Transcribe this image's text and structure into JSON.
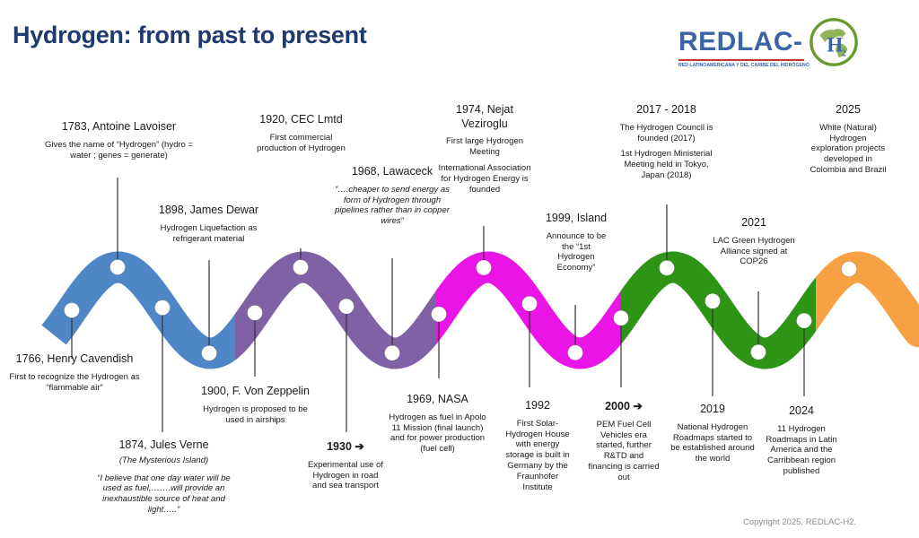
{
  "title": "Hydrogen: from past to present",
  "logo": {
    "word": "REDLAC-",
    "h2": "H",
    "h2_sub": "2",
    "subtitle": "RED LATINOAMERICANA Y DEL CARIBE DEL HIDRÓGENO"
  },
  "colors": {
    "title": "#1f3a6e",
    "blue": "#4f86c6",
    "purple": "#7f62a6",
    "magenta": "#ea14e6",
    "green": "#2e9416",
    "orange": "#f7a044"
  },
  "events": [
    {
      "id": "1766",
      "heading": "1766, Henry Cavendish",
      "lines": [
        "First to recognize the Hydrogen as “flammable air”"
      ]
    },
    {
      "id": "1783",
      "heading": "1783, Antoine Lavoiser",
      "lines": [
        "Gives the name of “Hydrogen” (hydro = water ; genes = generate)"
      ]
    },
    {
      "id": "1874",
      "heading": "1874, Jules Verne",
      "subtitle": "(The Mysterious Island)",
      "quote": "“I believe that one day water will be used as fuel,…….will provide an inexhaustible source of heat and light…..”"
    },
    {
      "id": "1898",
      "heading": "1898, James Dewar",
      "lines": [
        "Hydrogen Liquefaction as refrigerant material"
      ]
    },
    {
      "id": "1900",
      "heading": "1900, F. Von Zeppelin",
      "lines": [
        "Hydrogen is proposed to be used in airships"
      ]
    },
    {
      "id": "1920",
      "heading": "1920, CEC Lmtd",
      "lines": [
        "First commercial production of Hydrogen"
      ]
    },
    {
      "id": "1930",
      "heading": "1930 ➔",
      "lines": [
        "Experimental use of Hydrogen in road and sea transport"
      ]
    },
    {
      "id": "1968",
      "heading": "1968, Lawaceck",
      "quote": "“….cheaper to send energy as form of Hydrogen through pipelines rather than in copper wires”"
    },
    {
      "id": "1969",
      "heading": "1969, NASA",
      "lines": [
        "Hydrogen as fuel in Apolo 11 Mission (final launch) and for power production (fuel cell)"
      ]
    },
    {
      "id": "1974",
      "heading": "1974, Nejat Veziroglu",
      "lines": [
        "First large Hydrogen Meeting",
        "International Association for Hydrogen Energy is founded"
      ]
    },
    {
      "id": "1992",
      "heading": "1992",
      "lines": [
        "First Solar-Hydrogen House with energy storage is built in Germany by the Fraunhofer Institute"
      ]
    },
    {
      "id": "1999",
      "heading": "1999, Island",
      "lines": [
        "Announce to be the “1st Hydrogen Economy”"
      ]
    },
    {
      "id": "2000",
      "heading": "2000 ➔",
      "lines": [
        "PEM Fuel Cell Vehicles era started, further R&TD and financing is carried out"
      ]
    },
    {
      "id": "2017",
      "heading": "2017 - 2018",
      "lines": [
        "The Hydrogen Council is founded (2017)",
        "1st Hydrogen Ministerial Meeting held in Tokyo, Japan (2018)"
      ]
    },
    {
      "id": "2019",
      "heading": "2019",
      "lines": [
        "National Hydrogen Roadmaps started to be established around the world"
      ]
    },
    {
      "id": "2021",
      "heading": "2021",
      "lines": [
        "LAC Green Hydrogen Alliance signed at COP26"
      ]
    },
    {
      "id": "2024",
      "heading": "2024",
      "lines": [
        "11 Hydrogen Roadmaps in Latin America and the Carribbean region published"
      ]
    },
    {
      "id": "2025",
      "heading": "2025",
      "lines": [
        "White (Natural) Hydrogen exploration projects developed in Colombia and Brazil"
      ]
    }
  ],
  "copyright": "Copyright 2025, REDLAC-H2."
}
